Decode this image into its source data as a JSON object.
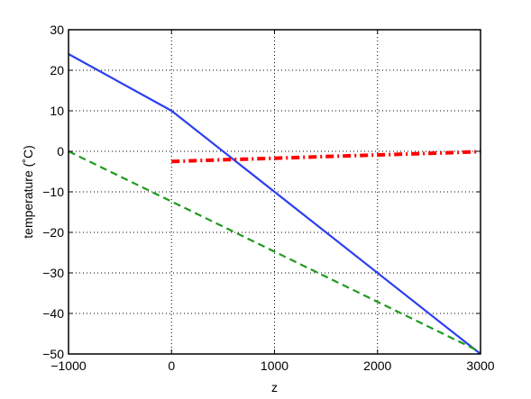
{
  "chart_data": {
    "type": "line",
    "title": "",
    "xlabel": "z",
    "ylabel": "temperature (˚C)",
    "xlim": [
      -1000,
      3000
    ],
    "ylim": [
      -50,
      30
    ],
    "xticks": [
      -1000,
      0,
      1000,
      2000,
      3000
    ],
    "yticks": [
      -50,
      -40,
      -30,
      -20,
      -10,
      0,
      10,
      20,
      30
    ],
    "xtick_labels": [
      "−1000",
      "0",
      "1000",
      "2000",
      "3000"
    ],
    "ytick_labels": [
      "−50",
      "−40",
      "−30",
      "−20",
      "−10",
      "0",
      "10",
      "20",
      "30"
    ],
    "grid": true,
    "series": [
      {
        "color": "#2a3ff0",
        "style": "solid",
        "x": [
          -1000,
          0,
          3000
        ],
        "y": [
          24,
          10,
          -50
        ]
      },
      {
        "color": "#1f9a1f",
        "style": "dashed",
        "x": [
          -1000,
          3000
        ],
        "y": [
          0,
          -49.5
        ]
      },
      {
        "color": "#ff0000",
        "style": "dashdot",
        "x": [
          0,
          500,
          1000,
          1500,
          2000,
          2500,
          3000
        ],
        "y": [
          -2.5,
          -2.1,
          -1.7,
          -1.3,
          -0.9,
          -0.5,
          -0.1
        ]
      }
    ]
  }
}
